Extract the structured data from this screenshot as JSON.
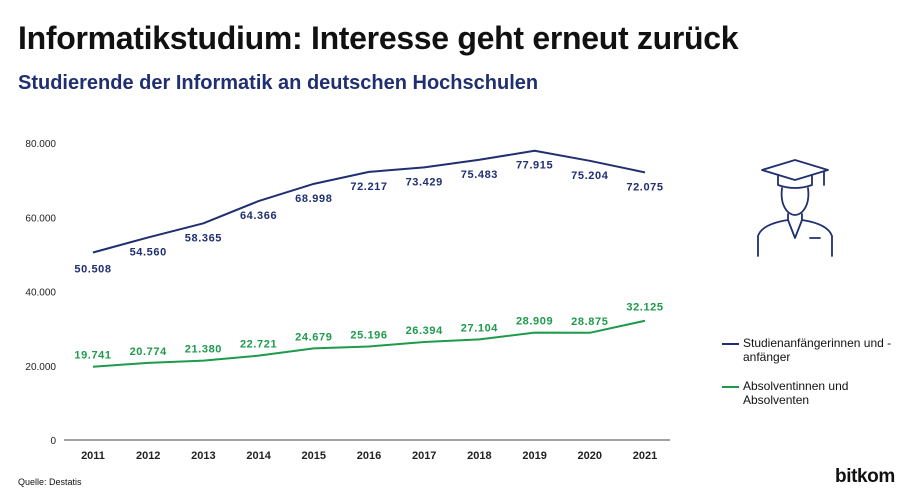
{
  "title": "Informatikstudium: Interesse geht erneut zurück",
  "subtitle": "Studierende der Informatik an deutschen Hochschulen",
  "source": "Quelle: Destatis",
  "brand": "bitkom",
  "icon": "graduate-icon",
  "colors": {
    "series1": "#1f2f72",
    "series2": "#1d9a4c",
    "axis": "#444444"
  },
  "chart_data": {
    "type": "line",
    "x": [
      "2011",
      "2012",
      "2013",
      "2014",
      "2015",
      "2016",
      "2017",
      "2018",
      "2019",
      "2020",
      "2021"
    ],
    "ylim": [
      0,
      80000
    ],
    "yticks": [
      0,
      20000,
      40000,
      60000,
      80000
    ],
    "ytick_labels": [
      "0",
      "20.000",
      "40.000",
      "60.000",
      "80.000"
    ],
    "grid": false,
    "legend_position": "right",
    "series": [
      {
        "name": "Studienanfängerinnen und -anfänger",
        "color": "#1f2f72",
        "values": [
          50508,
          54560,
          58365,
          64366,
          68998,
          72217,
          73429,
          75483,
          77915,
          75204,
          72075
        ],
        "labels": [
          "50.508",
          "54.560",
          "58.365",
          "64.366",
          "68.998",
          "72.217",
          "73.429",
          "75.483",
          "77.915",
          "75.204",
          "72.075"
        ]
      },
      {
        "name": "Absolventinnen und Absolventen",
        "color": "#1d9a4c",
        "values": [
          19741,
          20774,
          21380,
          22721,
          24679,
          25196,
          26394,
          27104,
          28909,
          28875,
          32125
        ],
        "labels": [
          "19.741",
          "20.774",
          "21.380",
          "22.721",
          "24.679",
          "25.196",
          "26.394",
          "27.104",
          "28.909",
          "28.875",
          "32.125"
        ]
      }
    ]
  }
}
